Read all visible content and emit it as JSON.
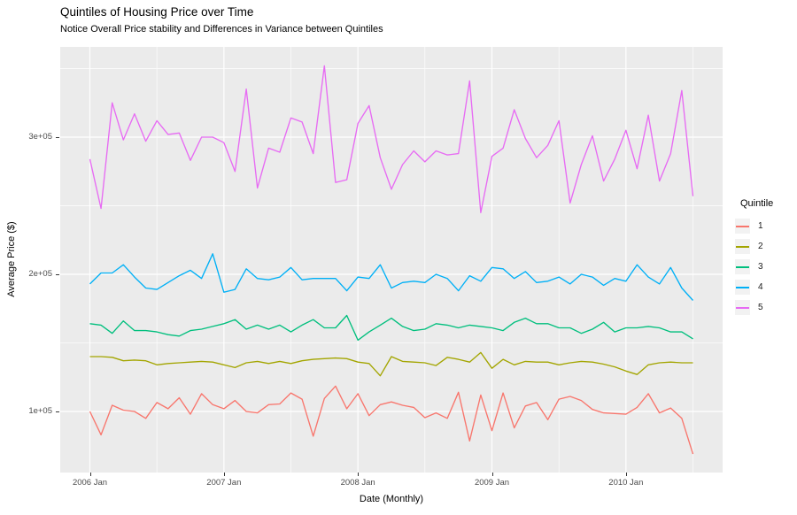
{
  "chart_data": {
    "type": "line",
    "title": "Quintiles of Housing Price over Time",
    "subtitle": "Notice Overall Price stability and Differences in Variance between Quintiles",
    "xlabel": "Date (Monthly)",
    "ylabel": "Average Price ($)",
    "legend_title": "Quintile",
    "legend_position": "right",
    "grid": true,
    "panel_bg": "#EBEBEB",
    "grid_color": "#FFFFFF",
    "tick_color": "#333333",
    "tick_label_color": "#4D4D4D",
    "x_unit": "month",
    "x_start": "2006 Jan",
    "x_end": "2010 Jul",
    "n_points_per_series": 55,
    "x_major_ticks": [
      {
        "label": "2006 Jan",
        "month_index": 0
      },
      {
        "label": "2007 Jan",
        "month_index": 12
      },
      {
        "label": "2008 Jan",
        "month_index": 24
      },
      {
        "label": "2009 Jan",
        "month_index": 36
      },
      {
        "label": "2010 Jan",
        "month_index": 48
      }
    ],
    "x_minor_months": [
      6,
      18,
      30,
      42,
      54
    ],
    "y_major_ticks": [
      {
        "label": "1e+05",
        "value": 100000
      },
      {
        "label": "2e+05",
        "value": 200000
      },
      {
        "label": "3e+05",
        "value": 300000
      }
    ],
    "y_minor_values": [
      150000,
      250000,
      350000
    ],
    "ylim": [
      55500,
      365800
    ],
    "series": [
      {
        "name": "1",
        "color": "#F8766D",
        "values": [
          100000,
          83000,
          104500,
          101000,
          100000,
          95000,
          106500,
          102000,
          110000,
          98000,
          113000,
          105000,
          102000,
          108000,
          100000,
          99000,
          105000,
          105500,
          113500,
          109000,
          82000,
          109500,
          118500,
          102000,
          113000,
          97000,
          105000,
          107000,
          104500,
          103000,
          95500,
          99000,
          95000,
          114000,
          78500,
          112000,
          86000,
          113500,
          88000,
          104000,
          106500,
          94000,
          109000,
          111000,
          108000,
          101500,
          99000,
          98500,
          98000,
          103000,
          113000,
          99000,
          102500,
          95000,
          69000
        ]
      },
      {
        "name": "2",
        "color": "#A3A500",
        "values": [
          140000,
          140000,
          139500,
          137000,
          137500,
          137000,
          134000,
          135000,
          135500,
          136000,
          136500,
          136000,
          134000,
          132000,
          135500,
          136500,
          135000,
          136500,
          135000,
          137000,
          138000,
          138500,
          139000,
          138500,
          136000,
          135000,
          126000,
          140000,
          136500,
          136000,
          135500,
          133500,
          139500,
          138000,
          136000,
          143000,
          131500,
          138000,
          134000,
          136500,
          136000,
          136000,
          134000,
          135500,
          136500,
          136000,
          134500,
          132500,
          129500,
          127000,
          134000,
          135500,
          136000,
          135500,
          135500
        ]
      },
      {
        "name": "3",
        "color": "#00BF7D",
        "values": [
          164000,
          163000,
          157000,
          166000,
          159000,
          159000,
          158000,
          156000,
          155000,
          159000,
          160000,
          162000,
          164000,
          167000,
          160000,
          163000,
          160000,
          163000,
          158000,
          163000,
          167000,
          161000,
          161000,
          170000,
          152000,
          158000,
          163000,
          168000,
          162000,
          159000,
          160000,
          164000,
          163000,
          161000,
          163000,
          162000,
          161000,
          159000,
          165000,
          168000,
          164000,
          164000,
          161000,
          161000,
          157000,
          160000,
          165000,
          158000,
          161000,
          161000,
          162000,
          161000,
          158000,
          158000,
          153000
        ]
      },
      {
        "name": "4",
        "color": "#00B0F6",
        "values": [
          193000,
          201000,
          201000,
          207000,
          198000,
          190000,
          189000,
          194000,
          199000,
          203000,
          197000,
          215000,
          187000,
          189000,
          204000,
          197000,
          196000,
          198000,
          205000,
          196000,
          197000,
          197000,
          197000,
          188000,
          198000,
          197000,
          207000,
          190000,
          194000,
          195000,
          194000,
          200000,
          197000,
          188000,
          199000,
          195000,
          205000,
          204000,
          197000,
          202000,
          194000,
          195000,
          198000,
          193000,
          200000,
          198000,
          192000,
          197000,
          195000,
          207000,
          198000,
          193000,
          205000,
          190000,
          181000
        ]
      },
      {
        "name": "5",
        "color": "#E76BF3",
        "values": [
          284000,
          248000,
          325000,
          298000,
          317000,
          297000,
          312000,
          302000,
          303000,
          283000,
          300000,
          300000,
          296000,
          275000,
          335000,
          263000,
          292000,
          289000,
          314000,
          311000,
          288000,
          352000,
          267000,
          269000,
          310000,
          323000,
          285000,
          262000,
          280000,
          290000,
          282000,
          290000,
          287000,
          288000,
          341000,
          245000,
          286000,
          292000,
          320000,
          299000,
          285000,
          294000,
          312000,
          252000,
          280000,
          301000,
          268000,
          284000,
          305000,
          277000,
          316000,
          268000,
          288000,
          334000,
          257000
        ]
      }
    ]
  }
}
